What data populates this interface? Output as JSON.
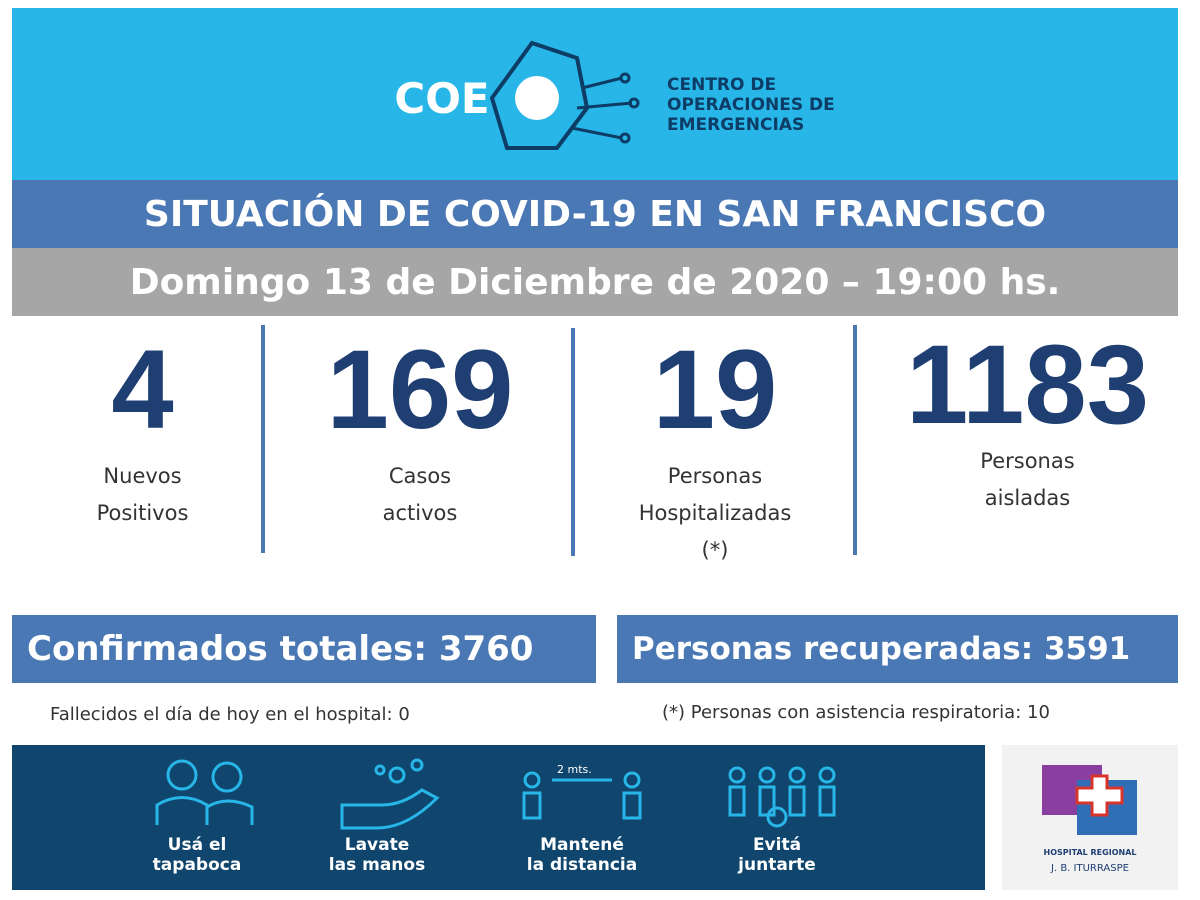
{
  "header": {
    "logo": "COE",
    "org_lines": [
      "CENTRO DE",
      "OPERACIONES DE",
      "EMERGENCIAS"
    ]
  },
  "title": "SITUACIÓN DE COVID-19 EN SAN FRANCISCO",
  "date": "Domingo 13 de Diciembre de 2020 – 19:00 hs.",
  "stats": [
    {
      "value": "4",
      "label": [
        "Nuevos",
        "Positivos"
      ]
    },
    {
      "value": "169",
      "label": [
        "Casos",
        "activos"
      ]
    },
    {
      "value": "19",
      "label": [
        "Personas",
        "Hospitalizadas",
        "(*)"
      ]
    },
    {
      "value": "1183",
      "label": [
        "Personas",
        "aisladas"
      ]
    }
  ],
  "totals": [
    "Confirmados totales: 3760",
    "Personas recuperadas: 3591"
  ],
  "notes": [
    "Fallecidos el día de hoy en el hospital: 0",
    "(*) Personas con asistencia respiratoria: 10"
  ],
  "tips": [
    {
      "label": [
        "Usá el",
        "tapaboca"
      ]
    },
    {
      "label": [
        "Lavate",
        "las manos"
      ],
      "extra": null
    },
    {
      "label": [
        "Mantené",
        "la distancia"
      ],
      "extra": "2 mts."
    },
    {
      "label": [
        "Evitá",
        "juntarte"
      ]
    }
  ],
  "hospital": [
    "HOSPITAL REGIONAL",
    "J. B. ITURRASPE"
  ]
}
